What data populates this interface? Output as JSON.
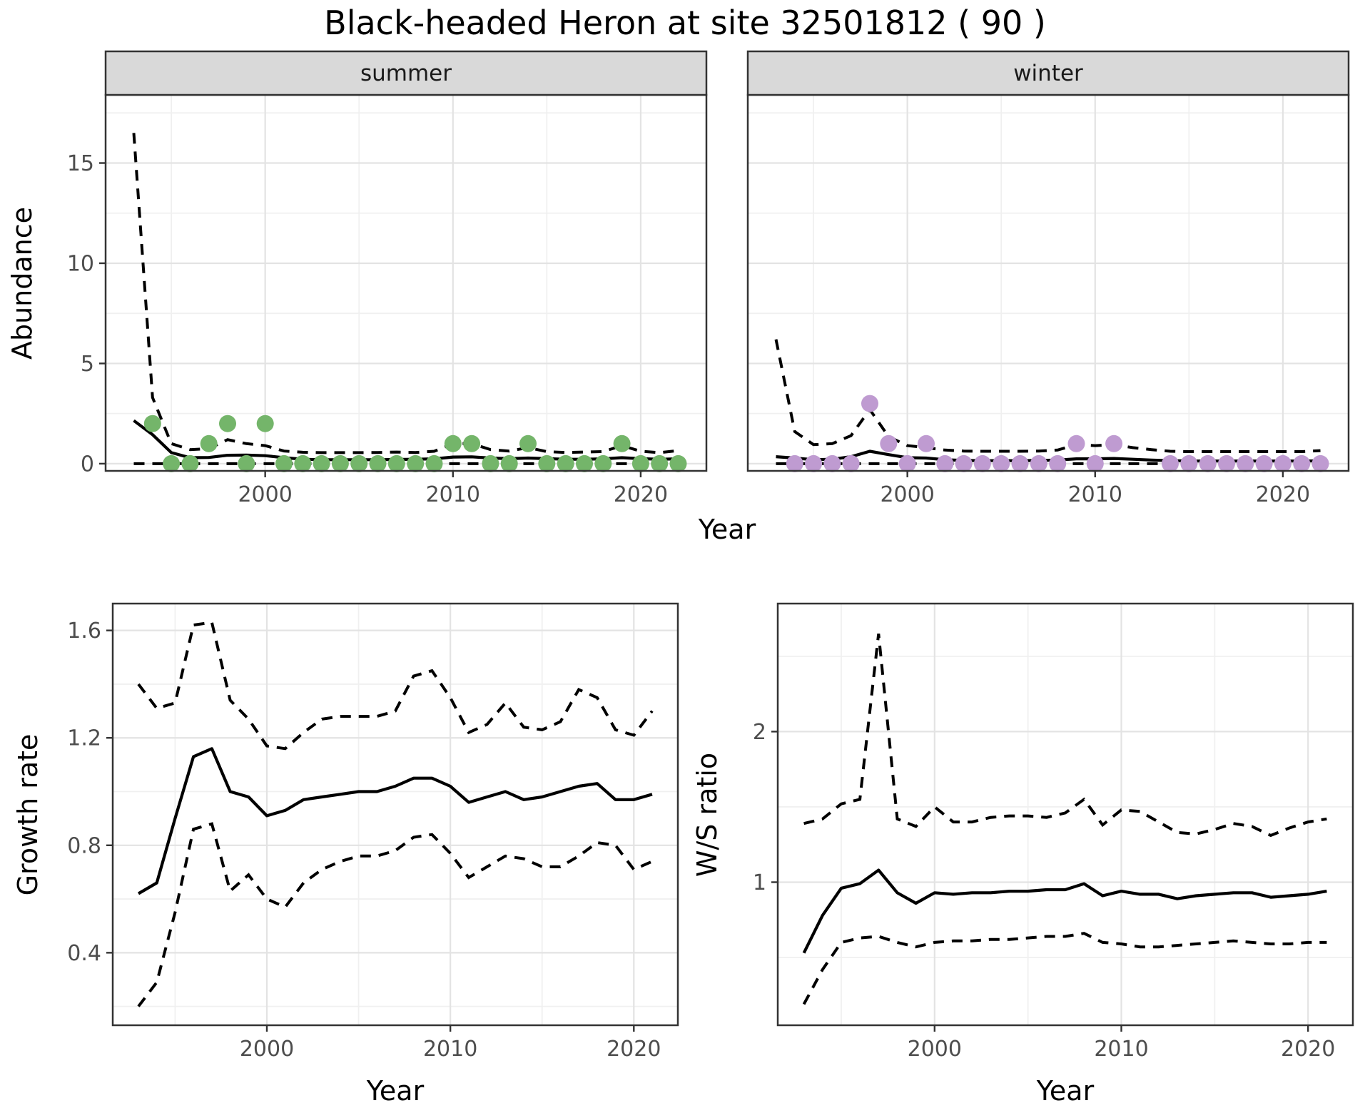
{
  "title": "Black-headed Heron at site 32501812 ( 90 )",
  "colors": {
    "summer_point": "#74b56a",
    "winter_point": "#bf9bd1",
    "line": "#000000",
    "strip_bg": "#d9d9d9",
    "panel_border": "#333333",
    "grid_major": "#e3e3e3",
    "grid_minor": "#f0f0f0",
    "tick_text": "#4d4d4d"
  },
  "chart_data": [
    {
      "type": "scatter",
      "facet": "summer",
      "xlabel": "Year",
      "ylabel": "Abundance",
      "xlim": [
        1991.5,
        2023.5
      ],
      "ylim": [
        -0.36,
        18.4
      ],
      "x_ticks": [
        2000,
        2010,
        2020
      ],
      "x_tick_labels": [
        "2000",
        "2010",
        "2020"
      ],
      "x_minor": [
        1995,
        2005,
        2015
      ],
      "y_ticks": [
        0,
        5,
        10,
        15
      ],
      "y_tick_labels": [
        "0",
        "5",
        "10",
        "15"
      ],
      "y_minor": [
        2.5,
        7.5,
        12.5,
        17.5
      ],
      "years": [
        1994,
        1995,
        1996,
        1997,
        1998,
        1999,
        2000,
        2001,
        2002,
        2003,
        2004,
        2005,
        2006,
        2007,
        2008,
        2009,
        2010,
        2011,
        2012,
        2013,
        2014,
        2015,
        2016,
        2017,
        2018,
        2019,
        2020,
        2021,
        2022
      ],
      "obs": [
        2,
        0,
        0,
        1,
        2,
        0,
        2,
        0,
        0,
        0,
        0,
        0,
        0,
        0,
        0,
        0,
        1,
        1,
        0,
        0,
        1,
        0,
        0,
        0,
        0,
        1,
        0,
        0,
        0
      ],
      "fit_years": [
        1993,
        1994,
        1995,
        1996,
        1997,
        1998,
        1999,
        2000,
        2001,
        2002,
        2003,
        2004,
        2005,
        2006,
        2007,
        2008,
        2009,
        2010,
        2011,
        2012,
        2013,
        2014,
        2015,
        2016,
        2017,
        2018,
        2019,
        2020,
        2021,
        2022
      ],
      "fit": [
        2.15,
        1.45,
        0.55,
        0.3,
        0.31,
        0.42,
        0.43,
        0.4,
        0.3,
        0.22,
        0.2,
        0.2,
        0.2,
        0.2,
        0.21,
        0.22,
        0.24,
        0.33,
        0.34,
        0.28,
        0.25,
        0.28,
        0.25,
        0.22,
        0.22,
        0.24,
        0.3,
        0.25,
        0.22,
        0.24
      ],
      "upper": [
        16.5,
        3.3,
        1.0,
        0.7,
        0.75,
        1.2,
        1.0,
        0.9,
        0.63,
        0.57,
        0.55,
        0.55,
        0.55,
        0.56,
        0.58,
        0.56,
        0.62,
        1.0,
        1.0,
        0.7,
        0.63,
        0.8,
        0.6,
        0.56,
        0.58,
        0.6,
        0.9,
        0.62,
        0.55,
        0.65
      ],
      "lower": [
        0,
        0,
        0,
        0,
        0,
        0,
        0,
        0,
        0,
        0,
        0,
        0,
        0,
        0,
        0,
        0,
        0,
        0,
        0,
        0,
        0,
        0,
        0,
        0,
        0,
        0,
        0,
        0,
        0,
        0
      ]
    },
    {
      "type": "scatter",
      "facet": "winter",
      "xlabel": "Year",
      "ylabel": "Abundance",
      "xlim": [
        1991.5,
        2023.5
      ],
      "ylim": [
        -0.36,
        18.4
      ],
      "x_ticks": [
        2000,
        2010,
        2020
      ],
      "x_tick_labels": [
        "2000",
        "2010",
        "2020"
      ],
      "x_minor": [
        1995,
        2005,
        2015
      ],
      "y_ticks": [
        0,
        5,
        10,
        15
      ],
      "y_tick_labels": [
        "0",
        "5",
        "10",
        "15"
      ],
      "y_minor": [
        2.5,
        7.5,
        12.5,
        17.5
      ],
      "years": [
        1994,
        1995,
        1996,
        1997,
        1998,
        1999,
        2000,
        2001,
        2002,
        2003,
        2004,
        2005,
        2006,
        2007,
        2008,
        2009,
        2010,
        2011,
        2014,
        2015,
        2016,
        2017,
        2018,
        2019,
        2020,
        2021,
        2022
      ],
      "obs": [
        0,
        0,
        0,
        0,
        3,
        1,
        0,
        1,
        0,
        0,
        0,
        0,
        0,
        0,
        0,
        1,
        0,
        1,
        0,
        0,
        0,
        0,
        0,
        0,
        0,
        0,
        0
      ],
      "fit_years": [
        1993,
        1994,
        1995,
        1996,
        1997,
        1998,
        1999,
        2000,
        2001,
        2002,
        2003,
        2004,
        2005,
        2006,
        2007,
        2008,
        2009,
        2010,
        2011,
        2012,
        2013,
        2014,
        2015,
        2016,
        2017,
        2018,
        2019,
        2020,
        2021,
        2022
      ],
      "fit": [
        0.35,
        0.28,
        0.2,
        0.22,
        0.35,
        0.62,
        0.45,
        0.3,
        0.28,
        0.2,
        0.16,
        0.15,
        0.15,
        0.15,
        0.16,
        0.18,
        0.24,
        0.24,
        0.26,
        0.22,
        0.18,
        0.15,
        0.13,
        0.13,
        0.13,
        0.13,
        0.13,
        0.13,
        0.13,
        0.14
      ],
      "upper": [
        6.2,
        1.6,
        0.95,
        1.0,
        1.4,
        2.7,
        1.35,
        0.9,
        0.8,
        0.68,
        0.63,
        0.62,
        0.62,
        0.62,
        0.63,
        0.68,
        0.95,
        0.9,
        0.95,
        0.8,
        0.7,
        0.62,
        0.6,
        0.6,
        0.6,
        0.6,
        0.6,
        0.6,
        0.6,
        0.65
      ],
      "lower": [
        0,
        0,
        0,
        0,
        0,
        0,
        0,
        0,
        0,
        0,
        0,
        0,
        0,
        0,
        0,
        0,
        0,
        0,
        0,
        0,
        0,
        0,
        0,
        0,
        0,
        0,
        0,
        0,
        0,
        0
      ]
    },
    {
      "type": "line",
      "facet": null,
      "xlabel": "Year",
      "ylabel": "Growth rate",
      "xlim": [
        1991.6,
        2022.4
      ],
      "ylim": [
        0.13,
        1.7
      ],
      "x_ticks": [
        2000,
        2010,
        2020
      ],
      "x_tick_labels": [
        "2000",
        "2010",
        "2020"
      ],
      "x_minor": [
        1995,
        2005,
        2015
      ],
      "y_ticks": [
        0.4,
        0.8,
        1.2,
        1.6
      ],
      "y_tick_labels": [
        "0.4",
        "0.8",
        "1.2",
        "1.6"
      ],
      "y_minor": [
        0.2,
        0.6,
        1.0,
        1.4
      ],
      "fit_years": [
        1993,
        1994,
        1995,
        1996,
        1997,
        1998,
        1999,
        2000,
        2001,
        2002,
        2003,
        2004,
        2005,
        2006,
        2007,
        2008,
        2009,
        2010,
        2011,
        2012,
        2013,
        2014,
        2015,
        2016,
        2017,
        2018,
        2019,
        2020,
        2021
      ],
      "fit": [
        0.62,
        0.66,
        0.9,
        1.13,
        1.16,
        1.0,
        0.98,
        0.91,
        0.93,
        0.97,
        0.98,
        0.99,
        1.0,
        1.0,
        1.02,
        1.05,
        1.05,
        1.02,
        0.96,
        0.98,
        1.0,
        0.97,
        0.98,
        1.0,
        1.02,
        1.03,
        0.97,
        0.97,
        0.99
      ],
      "upper": [
        1.4,
        1.31,
        1.33,
        1.62,
        1.63,
        1.34,
        1.27,
        1.17,
        1.16,
        1.22,
        1.27,
        1.28,
        1.28,
        1.28,
        1.3,
        1.43,
        1.45,
        1.35,
        1.22,
        1.25,
        1.33,
        1.24,
        1.23,
        1.26,
        1.38,
        1.35,
        1.23,
        1.21,
        1.3
      ],
      "lower": [
        0.2,
        0.29,
        0.55,
        0.86,
        0.88,
        0.63,
        0.69,
        0.6,
        0.57,
        0.66,
        0.71,
        0.74,
        0.76,
        0.76,
        0.78,
        0.83,
        0.84,
        0.77,
        0.68,
        0.72,
        0.76,
        0.75,
        0.72,
        0.72,
        0.76,
        0.81,
        0.8,
        0.71,
        0.74
      ]
    },
    {
      "type": "line",
      "facet": null,
      "xlabel": "Year",
      "ylabel": "W/S ratio",
      "xlim": [
        1991.6,
        2022.4
      ],
      "ylim": [
        0.05,
        2.85
      ],
      "x_ticks": [
        2000,
        2010,
        2020
      ],
      "x_tick_labels": [
        "2000",
        "2010",
        "2020"
      ],
      "x_minor": [
        1995,
        2005,
        2015
      ],
      "y_ticks": [
        1,
        2
      ],
      "y_tick_labels": [
        "1",
        "2"
      ],
      "y_minor": [
        0.5,
        1.5,
        2.5
      ],
      "fit_years": [
        1993,
        1994,
        1995,
        1996,
        1997,
        1998,
        1999,
        2000,
        2001,
        2002,
        2003,
        2004,
        2005,
        2006,
        2007,
        2008,
        2009,
        2010,
        2011,
        2012,
        2013,
        2014,
        2015,
        2016,
        2017,
        2018,
        2019,
        2020,
        2021
      ],
      "fit": [
        0.53,
        0.78,
        0.96,
        0.99,
        1.08,
        0.93,
        0.86,
        0.93,
        0.92,
        0.93,
        0.93,
        0.94,
        0.94,
        0.95,
        0.95,
        0.99,
        0.91,
        0.94,
        0.92,
        0.92,
        0.89,
        0.91,
        0.92,
        0.93,
        0.93,
        0.9,
        0.91,
        0.92,
        0.94
      ],
      "upper": [
        1.39,
        1.42,
        1.52,
        1.55,
        2.65,
        1.42,
        1.37,
        1.5,
        1.4,
        1.4,
        1.43,
        1.44,
        1.44,
        1.43,
        1.46,
        1.55,
        1.38,
        1.48,
        1.47,
        1.4,
        1.33,
        1.32,
        1.35,
        1.39,
        1.37,
        1.31,
        1.36,
        1.4,
        1.42
      ],
      "lower": [
        0.19,
        0.42,
        0.6,
        0.63,
        0.64,
        0.6,
        0.57,
        0.6,
        0.61,
        0.61,
        0.62,
        0.62,
        0.63,
        0.64,
        0.64,
        0.66,
        0.6,
        0.59,
        0.57,
        0.57,
        0.58,
        0.59,
        0.6,
        0.61,
        0.6,
        0.59,
        0.59,
        0.6,
        0.6
      ]
    }
  ]
}
